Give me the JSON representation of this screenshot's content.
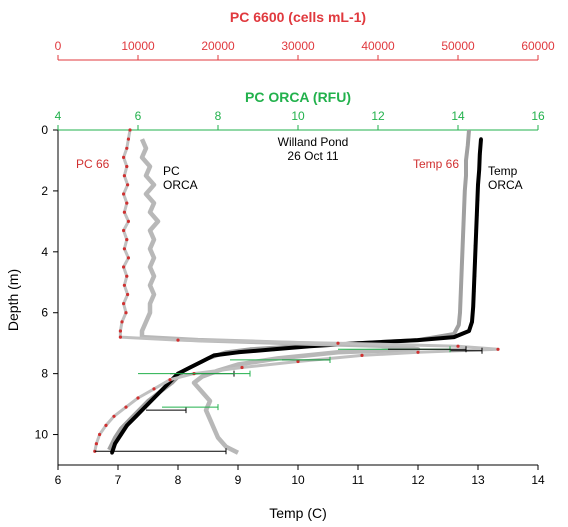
{
  "chart_data": {
    "type": "scatter",
    "annotation_title": [
      "Willand Pond",
      "26 Oct 11"
    ],
    "axes": {
      "temp": {
        "label": "Temp (C)",
        "range": [
          6,
          14
        ],
        "ticks": [
          6,
          7,
          8,
          9,
          10,
          11,
          12,
          13,
          14
        ],
        "color": "#000000"
      },
      "pc6600": {
        "label": "PC 6600 (cells mL-1)",
        "range": [
          0,
          60000
        ],
        "ticks": [
          0,
          10000,
          20000,
          30000,
          40000,
          50000,
          60000
        ],
        "color": "#e0393e"
      },
      "orca": {
        "label": "PC ORCA (RFU)",
        "range": [
          4,
          16
        ],
        "ticks": [
          4,
          6,
          8,
          10,
          12,
          14,
          16
        ],
        "color": "#22b14c"
      },
      "depth": {
        "label": "Depth (m)",
        "range": [
          0,
          11
        ],
        "ticks": [
          0,
          2,
          4,
          6,
          8,
          10
        ],
        "inverted": true
      }
    },
    "series": [
      {
        "label": [
          "PC 66"
        ],
        "axis": "pc6600",
        "color": "#d03030",
        "line_color": "#c0c0c0",
        "points": [
          [
            9000,
            0.0
          ],
          [
            8800,
            0.3
          ],
          [
            8600,
            0.6
          ],
          [
            8200,
            0.9
          ],
          [
            8600,
            1.2
          ],
          [
            8300,
            1.5
          ],
          [
            8700,
            1.8
          ],
          [
            8200,
            2.1
          ],
          [
            8600,
            2.4
          ],
          [
            8300,
            2.7
          ],
          [
            8800,
            3.0
          ],
          [
            8200,
            3.3
          ],
          [
            8600,
            3.6
          ],
          [
            8300,
            3.9
          ],
          [
            8800,
            4.2
          ],
          [
            8200,
            4.5
          ],
          [
            8600,
            4.8
          ],
          [
            8300,
            5.1
          ],
          [
            8700,
            5.4
          ],
          [
            8200,
            5.7
          ],
          [
            8500,
            6.0
          ],
          [
            8000,
            6.3
          ],
          [
            7800,
            6.6
          ],
          [
            7800,
            6.8
          ],
          [
            15000,
            6.9
          ],
          [
            35000,
            7.0
          ],
          [
            50000,
            7.1
          ],
          [
            55000,
            7.2
          ],
          [
            45000,
            7.3
          ],
          [
            38000,
            7.4
          ],
          [
            30000,
            7.6
          ],
          [
            23000,
            7.8
          ],
          [
            17000,
            8.0
          ],
          [
            14000,
            8.2
          ],
          [
            12000,
            8.5
          ],
          [
            10000,
            8.8
          ],
          [
            8500,
            9.1
          ],
          [
            7000,
            9.4
          ],
          [
            6000,
            9.7
          ],
          [
            5200,
            10.0
          ],
          [
            4800,
            10.3
          ],
          [
            4600,
            10.55
          ]
        ],
        "error_bars": [
          [
            7.25,
            49000,
            53000
          ],
          [
            7.55,
            28000,
            34000
          ],
          [
            8.0,
            14000,
            22000
          ],
          [
            9.2,
            11000,
            16000
          ],
          [
            10.55,
            4600,
            21000
          ]
        ]
      },
      {
        "label": [
          "PC",
          "ORCA"
        ],
        "axis": "orca",
        "color": "#b8b8b8",
        "points": [
          [
            6.1,
            0.3
          ],
          [
            6.2,
            0.6
          ],
          [
            6.1,
            0.9
          ],
          [
            6.3,
            1.2
          ],
          [
            6.2,
            1.5
          ],
          [
            6.4,
            1.8
          ],
          [
            6.2,
            2.1
          ],
          [
            6.4,
            2.4
          ],
          [
            6.3,
            2.7
          ],
          [
            6.5,
            3.0
          ],
          [
            6.3,
            3.3
          ],
          [
            6.4,
            3.6
          ],
          [
            6.3,
            3.9
          ],
          [
            6.4,
            4.2
          ],
          [
            6.3,
            4.5
          ],
          [
            6.4,
            4.8
          ],
          [
            6.3,
            5.1
          ],
          [
            6.4,
            5.4
          ],
          [
            6.3,
            5.7
          ],
          [
            6.3,
            6.0
          ],
          [
            6.2,
            6.3
          ],
          [
            6.1,
            6.6
          ],
          [
            6.1,
            6.8
          ],
          [
            7.5,
            6.9
          ],
          [
            10.0,
            7.0
          ],
          [
            12.5,
            7.1
          ],
          [
            13.0,
            7.2
          ],
          [
            11.0,
            7.3
          ],
          [
            9.5,
            7.5
          ],
          [
            8.5,
            7.7
          ],
          [
            8.0,
            7.9
          ],
          [
            7.6,
            8.1
          ],
          [
            7.4,
            8.3
          ],
          [
            7.6,
            8.6
          ],
          [
            7.8,
            8.9
          ],
          [
            7.7,
            9.2
          ],
          [
            7.8,
            9.5
          ],
          [
            7.9,
            9.8
          ],
          [
            8.0,
            10.1
          ],
          [
            8.2,
            10.4
          ],
          [
            8.5,
            10.6
          ]
        ]
      },
      {
        "label": [
          "Temp 66"
        ],
        "axis": "temp",
        "color": "#a0a0a0",
        "points": [
          [
            12.85,
            0.0
          ],
          [
            12.83,
            0.5
          ],
          [
            12.8,
            1.0
          ],
          [
            12.8,
            1.5
          ],
          [
            12.78,
            2.0
          ],
          [
            12.77,
            2.5
          ],
          [
            12.76,
            3.0
          ],
          [
            12.75,
            3.5
          ],
          [
            12.74,
            4.0
          ],
          [
            12.73,
            4.5
          ],
          [
            12.72,
            5.0
          ],
          [
            12.71,
            5.5
          ],
          [
            12.7,
            6.0
          ],
          [
            12.68,
            6.4
          ],
          [
            12.6,
            6.7
          ],
          [
            12.0,
            6.9
          ],
          [
            11.0,
            7.0
          ],
          [
            10.0,
            7.1
          ],
          [
            9.2,
            7.2
          ],
          [
            8.8,
            7.3
          ],
          [
            8.5,
            7.5
          ],
          [
            8.3,
            7.7
          ],
          [
            8.1,
            7.9
          ],
          [
            8.0,
            8.1
          ],
          [
            7.9,
            8.3
          ],
          [
            7.7,
            8.6
          ],
          [
            7.5,
            8.9
          ],
          [
            7.35,
            9.2
          ],
          [
            7.2,
            9.5
          ],
          [
            7.05,
            9.8
          ],
          [
            6.95,
            10.1
          ],
          [
            6.9,
            10.3
          ],
          [
            6.85,
            10.5
          ]
        ]
      },
      {
        "label": [
          "Temp",
          "ORCA"
        ],
        "axis": "temp",
        "color": "#000000",
        "points": [
          [
            13.05,
            0.3
          ],
          [
            13.03,
            0.8
          ],
          [
            13.02,
            1.3
          ],
          [
            13.0,
            1.8
          ],
          [
            12.99,
            2.3
          ],
          [
            12.98,
            2.8
          ],
          [
            12.97,
            3.3
          ],
          [
            12.96,
            3.8
          ],
          [
            12.95,
            4.3
          ],
          [
            12.94,
            4.8
          ],
          [
            12.93,
            5.3
          ],
          [
            12.92,
            5.8
          ],
          [
            12.9,
            6.3
          ],
          [
            12.85,
            6.6
          ],
          [
            12.6,
            6.8
          ],
          [
            12.0,
            6.9
          ],
          [
            11.0,
            7.0
          ],
          [
            10.2,
            7.1
          ],
          [
            9.6,
            7.2
          ],
          [
            9.0,
            7.3
          ],
          [
            8.6,
            7.4
          ],
          [
            8.4,
            7.6
          ],
          [
            8.2,
            7.8
          ],
          [
            8.0,
            8.0
          ],
          [
            7.9,
            8.2
          ],
          [
            7.75,
            8.5
          ],
          [
            7.6,
            8.8
          ],
          [
            7.45,
            9.1
          ],
          [
            7.3,
            9.4
          ],
          [
            7.15,
            9.7
          ],
          [
            7.05,
            10.0
          ],
          [
            6.95,
            10.3
          ],
          [
            6.9,
            10.6
          ]
        ]
      }
    ],
    "orca_error_bars": [
      [
        7.55,
        8.3,
        10.8
      ],
      [
        8.0,
        6.0,
        8.8
      ],
      [
        9.1,
        6.6,
        8.0
      ],
      [
        7.2,
        11.0,
        13.8
      ]
    ],
    "temp66_error_bars": [
      [
        7.2,
        11.5,
        12.8
      ]
    ]
  }
}
